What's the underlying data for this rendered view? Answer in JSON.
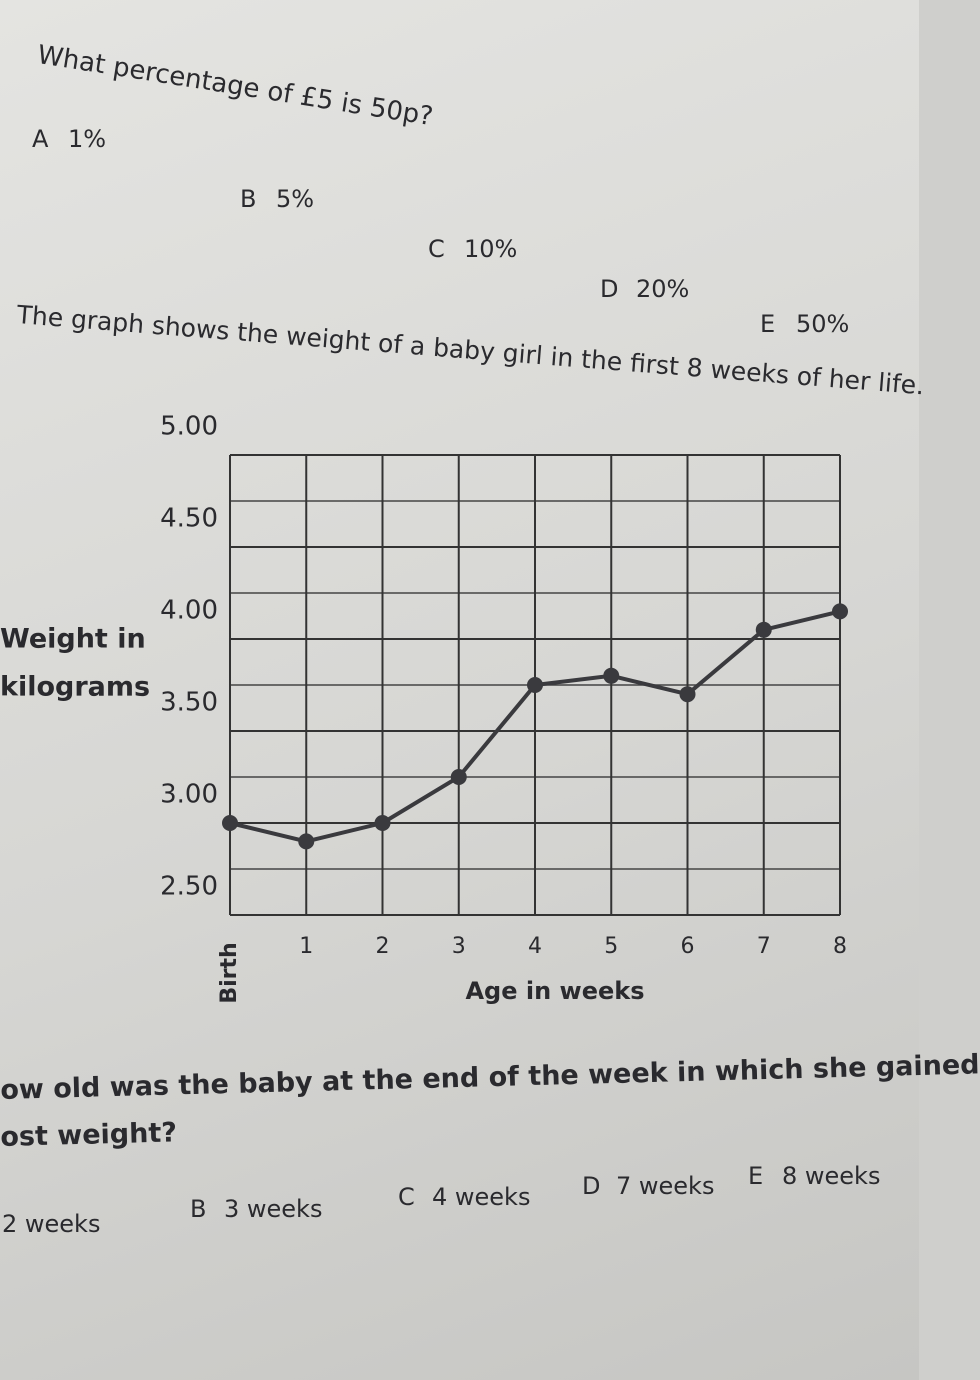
{
  "question1": {
    "text": "What percentage of £5 is 50p?",
    "options": [
      {
        "letter": "A",
        "text": "1%"
      },
      {
        "letter": "B",
        "text": "5%"
      },
      {
        "letter": "C",
        "text": "10%"
      },
      {
        "letter": "D",
        "text": "20%"
      },
      {
        "letter": "E",
        "text": "50%"
      }
    ]
  },
  "intro": "The graph shows the weight of a baby girl in the first 8 weeks of her life.",
  "chart_data": {
    "type": "line",
    "ylabel": [
      "Weight in",
      "kilograms"
    ],
    "xlabel": "Age in weeks",
    "categories": [
      "Birth",
      "1",
      "2",
      "3",
      "4",
      "5",
      "6",
      "7",
      "8"
    ],
    "values": [
      3.0,
      2.9,
      3.0,
      3.25,
      3.75,
      3.8,
      3.7,
      4.05,
      4.15
    ],
    "color": "#3a3a3e",
    "ylim": [
      2.5,
      5.0
    ],
    "yticks": [
      {
        "value": 2.5,
        "label": "2.50"
      },
      {
        "value": 3,
        "label": "3.00"
      },
      {
        "value": 3.5,
        "label": "3.50"
      },
      {
        "value": 4,
        "label": "4.00"
      },
      {
        "value": 4.5,
        "label": "4.50"
      },
      {
        "value": 5,
        "label": "5.00"
      }
    ],
    "minor_grid": [
      2.75,
      3.25,
      3.75,
      4.25,
      4.75
    ],
    "grid": true
  },
  "question2": {
    "lines": [
      "ow old was the baby at the end of the week in which she gained",
      "ost weight?"
    ],
    "options": [
      {
        "letter": "",
        "text": "2 weeks"
      },
      {
        "letter": "B",
        "text": "3 weeks"
      },
      {
        "letter": "C",
        "text": "4 weeks"
      },
      {
        "letter": "D",
        "text": "7 weeks"
      },
      {
        "letter": "E",
        "text": "8 weeks"
      }
    ]
  }
}
